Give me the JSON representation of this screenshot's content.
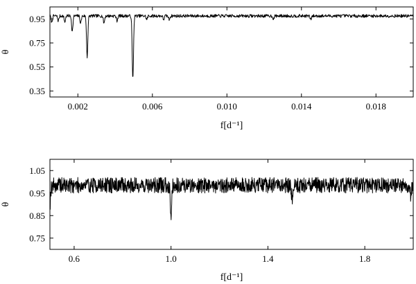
{
  "chart_data": [
    {
      "type": "line",
      "xlabel": "f[d⁻¹]",
      "ylabel": "θ",
      "xlim": [
        0.0005,
        0.02
      ],
      "ylim": [
        0.3,
        1.05
      ],
      "xticks": [
        0.002,
        0.006,
        0.01,
        0.014,
        0.018
      ],
      "xtick_labels": [
        "0.002",
        "0.006",
        "0.010",
        "0.014",
        "0.018"
      ],
      "yticks": [
        0.35,
        0.55,
        0.75,
        0.95
      ],
      "ytick_labels": [
        "0.35",
        "0.55",
        "0.75",
        "0.95"
      ],
      "grid": false,
      "series": [
        {
          "baseline": 0.975,
          "noise": 0.013,
          "dips": [
            {
              "x": 0.0006,
              "depth": 0.05
            },
            {
              "x": 0.00095,
              "depth": 0.04
            },
            {
              "x": 0.0013,
              "depth": 0.05
            },
            {
              "x": 0.0017,
              "depth": 0.13
            },
            {
              "x": 0.00215,
              "depth": 0.06
            },
            {
              "x": 0.0025,
              "depth": 0.34
            },
            {
              "x": 0.0034,
              "depth": 0.06
            },
            {
              "x": 0.0041,
              "depth": 0.04
            },
            {
              "x": 0.00495,
              "depth": 0.53
            },
            {
              "x": 0.0057,
              "depth": 0.03
            },
            {
              "x": 0.0066,
              "depth": 0.03
            },
            {
              "x": 0.0069,
              "depth": 0.03
            },
            {
              "x": 0.0125,
              "depth": 0.025
            },
            {
              "x": 0.0145,
              "depth": 0.03
            }
          ]
        }
      ]
    },
    {
      "type": "line",
      "xlabel": "f[d⁻¹]",
      "ylabel": "θ",
      "xlim": [
        0.5,
        2.0
      ],
      "ylim": [
        0.7,
        1.1
      ],
      "xticks": [
        0.6,
        1.0,
        1.4,
        1.8
      ],
      "xtick_labels": [
        "0.6",
        "1.0",
        "1.4",
        "1.8"
      ],
      "yticks": [
        0.75,
        0.85,
        0.95,
        1.05
      ],
      "ytick_labels": [
        "0.75",
        "0.85",
        "0.95",
        "1.05"
      ],
      "grid": false,
      "series": [
        {
          "baseline": 0.985,
          "noise": 0.035,
          "dips": [
            {
              "x": 0.5,
              "depth": 0.08
            },
            {
              "x": 1.0,
              "depth": 0.13
            },
            {
              "x": 1.5,
              "depth": 0.055
            },
            {
              "x": 1.99,
              "depth": 0.05
            }
          ]
        }
      ]
    }
  ]
}
